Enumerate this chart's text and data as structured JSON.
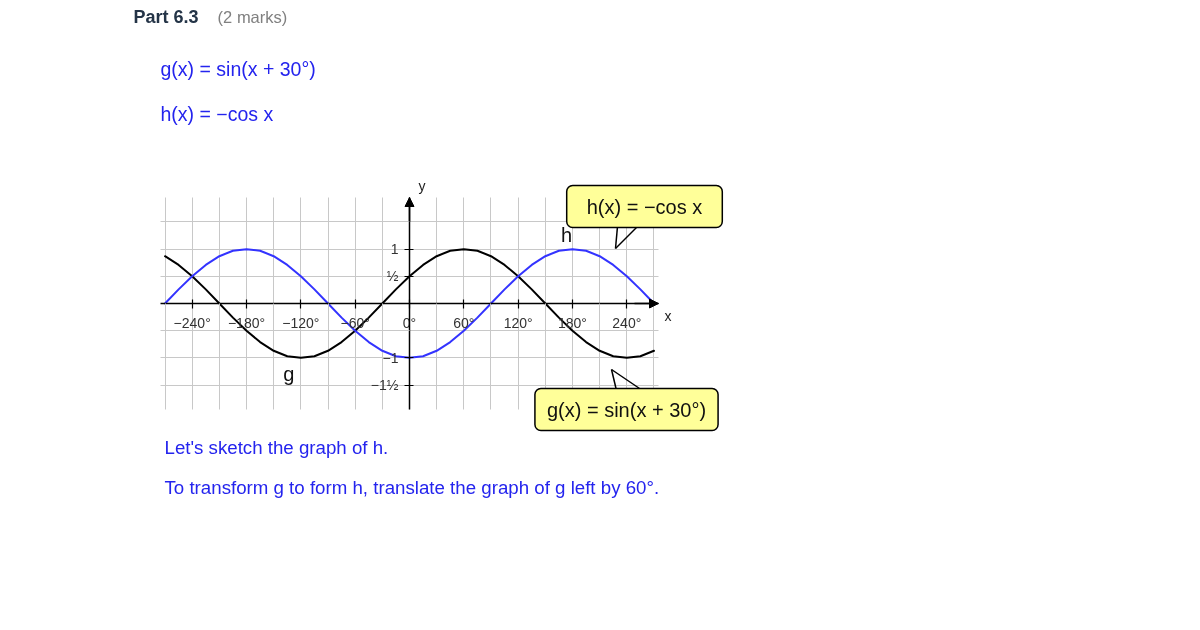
{
  "chart_data": {
    "type": "line",
    "title": "Part 6.3",
    "subtitle": "(2 marks)",
    "xlabel": "x",
    "ylabel": "y",
    "x": [
      -270,
      -255,
      -240,
      -225,
      -210,
      -195,
      -180,
      -165,
      -150,
      -135,
      -120,
      -105,
      -90,
      -75,
      -60,
      -45,
      -30,
      -15,
      0,
      15,
      30,
      45,
      60,
      75,
      90,
      105,
      120,
      135,
      150,
      165,
      180,
      195,
      210,
      225,
      240,
      255,
      270
    ],
    "series": [
      {
        "name": "g",
        "color": "#000000",
        "values": [
          0.87,
          0.71,
          0.5,
          0.26,
          0,
          -0.26,
          -0.5,
          -0.71,
          -0.87,
          -0.97,
          -1,
          -0.97,
          -0.87,
          -0.71,
          -0.5,
          -0.26,
          0,
          0.26,
          0.5,
          0.71,
          0.87,
          0.97,
          1,
          0.97,
          0.87,
          0.71,
          0.5,
          0.26,
          0,
          -0.26,
          -0.5,
          -0.71,
          -0.87,
          -0.97,
          -1,
          -0.97,
          -0.87
        ]
      },
      {
        "name": "h",
        "color": "#3333ff",
        "values": [
          0,
          0.26,
          0.5,
          0.71,
          0.87,
          0.97,
          1,
          0.97,
          0.87,
          0.71,
          0.5,
          0.26,
          0,
          -0.26,
          -0.5,
          -0.71,
          -0.87,
          -0.97,
          -1,
          -0.97,
          -0.87,
          -0.71,
          -0.5,
          -0.26,
          0,
          0.26,
          0.5,
          0.71,
          0.87,
          0.97,
          1,
          0.97,
          0.87,
          0.71,
          0.5,
          0.26,
          0
        ]
      }
    ],
    "xlim": [
      -275,
      275
    ],
    "ylim": [
      -1.95,
      1.95
    ],
    "xticks": [
      {
        "value": -270,
        "label": null
      },
      {
        "value": -240,
        "label": "−240°"
      },
      {
        "value": -210,
        "label": null
      },
      {
        "value": -180,
        "label": "−180°"
      },
      {
        "value": -150,
        "label": null
      },
      {
        "value": -120,
        "label": "−120°"
      },
      {
        "value": -90,
        "label": null
      },
      {
        "value": -60,
        "label": "−60°"
      },
      {
        "value": -30,
        "label": null
      },
      {
        "value": 0,
        "label": "0°"
      },
      {
        "value": 30,
        "label": null
      },
      {
        "value": 60,
        "label": "60°"
      },
      {
        "value": 90,
        "label": null
      },
      {
        "value": 120,
        "label": "120°"
      },
      {
        "value": 150,
        "label": null
      },
      {
        "value": 180,
        "label": "180°"
      },
      {
        "value": 210,
        "label": null
      },
      {
        "value": 240,
        "label": "240°"
      },
      {
        "value": 270,
        "label": null
      }
    ],
    "yticks": [
      {
        "value": -1.5,
        "label": "−1½"
      },
      {
        "value": -1,
        "label": "−1"
      },
      {
        "value": -0.5,
        "label": null
      },
      {
        "value": 0.5,
        "label": "½"
      },
      {
        "value": 1,
        "label": "1"
      },
      {
        "value": 1.5,
        "label": null
      }
    ],
    "grid": true,
    "annotations": [
      "g(x) = sin(x + 30°)",
      "h(x) = −cos x",
      "h(x) = −cos x",
      "g(x) = sin(x + 30°)",
      "Let's sketch the graph of h.",
      "To transform g to form h, translate the graph of g left by 60°."
    ]
  }
}
